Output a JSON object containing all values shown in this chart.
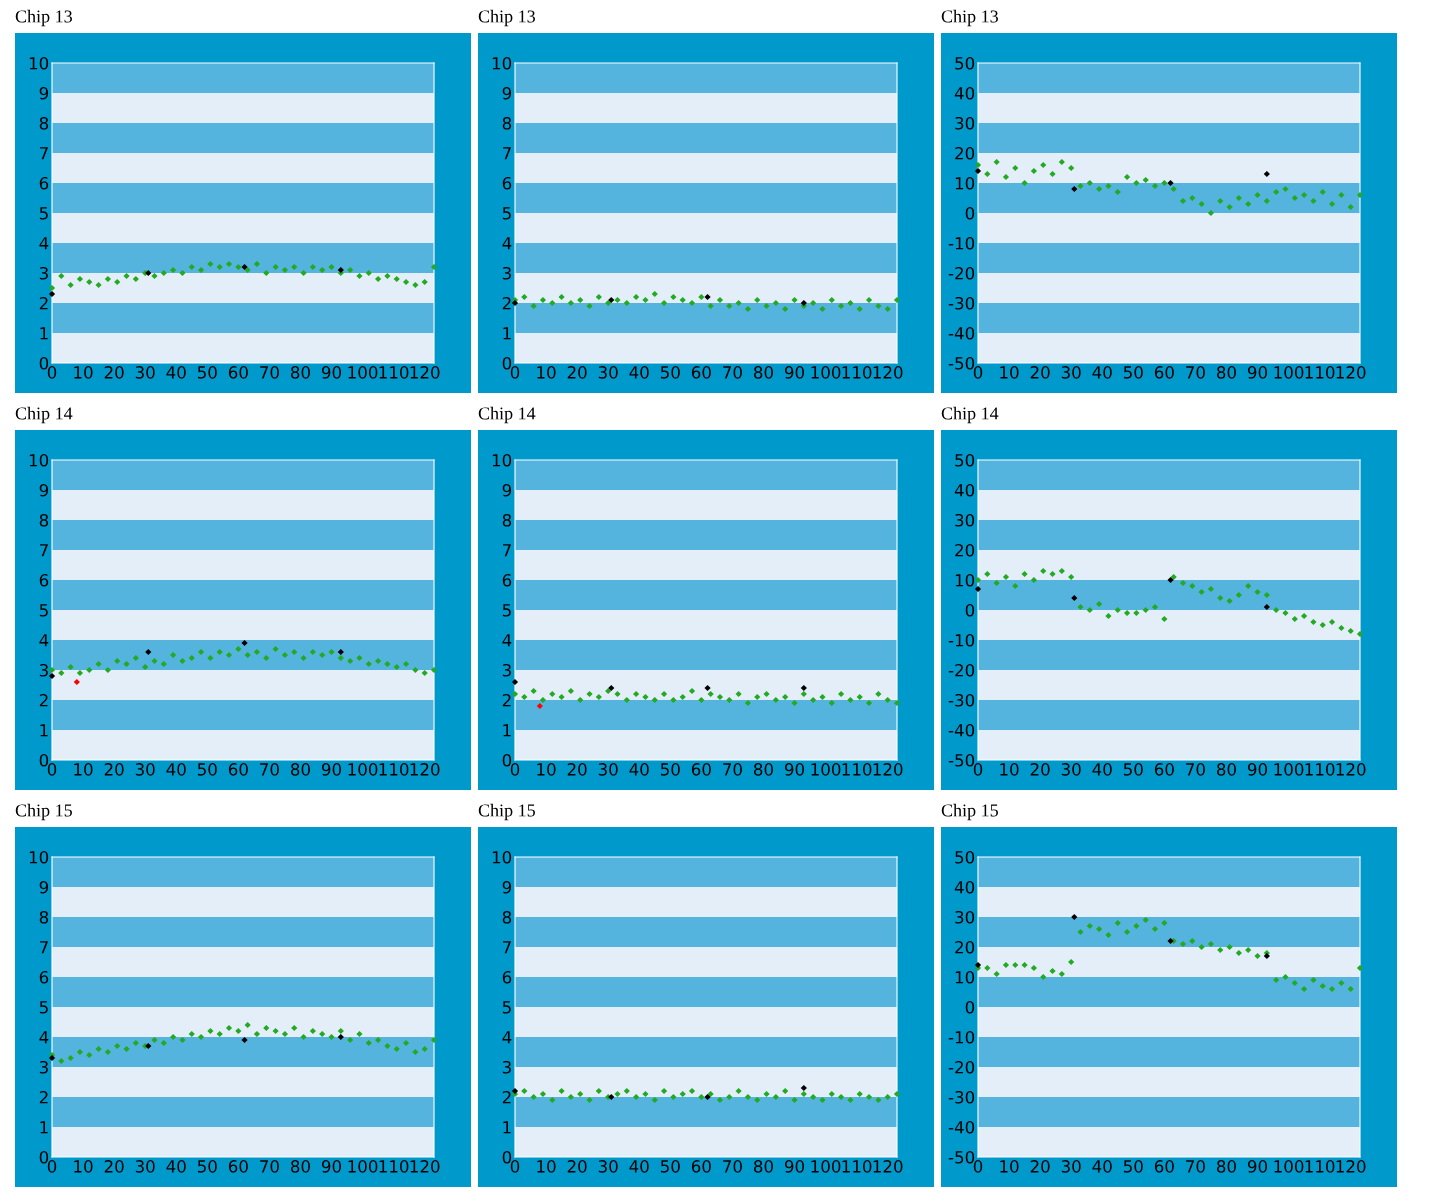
{
  "chart_data": [
    {
      "type": "scatter",
      "title": "Chip 13",
      "x": [
        0,
        3,
        6,
        9,
        12,
        15,
        18,
        21,
        24,
        27,
        30,
        33,
        36,
        39,
        42,
        45,
        48,
        51,
        54,
        57,
        60,
        63,
        66,
        69,
        72,
        75,
        78,
        81,
        84,
        87,
        90,
        93,
        96,
        99,
        102,
        105,
        108,
        111,
        114,
        117,
        120,
        123
      ],
      "xlim": [
        0,
        123
      ],
      "xticks": [
        0,
        10,
        20,
        30,
        40,
        50,
        60,
        70,
        80,
        90,
        100,
        110,
        120
      ],
      "ylim": [
        0,
        10
      ],
      "yticks": [
        0,
        1,
        2,
        3,
        4,
        5,
        6,
        7,
        8,
        9,
        10
      ],
      "marker": "diamond",
      "bands": [
        {
          "axis": "y",
          "from": 9,
          "to": 10,
          "color": "#55b4de"
        },
        {
          "axis": "y",
          "from": 7,
          "to": 8,
          "color": "#55b4de"
        },
        {
          "axis": "y",
          "from": 5,
          "to": 6,
          "color": "#55b4de"
        },
        {
          "axis": "y",
          "from": 3,
          "to": 4,
          "color": "#55b4de"
        },
        {
          "axis": "y",
          "from": 1,
          "to": 2,
          "color": "#55b4de"
        }
      ],
      "series": [
        {
          "color": "#22aa22",
          "values": [
            2.5,
            2.9,
            2.6,
            2.8,
            2.7,
            2.6,
            2.8,
            2.7,
            2.9,
            2.8,
            3.0,
            2.9,
            3.0,
            3.1,
            3.0,
            3.2,
            3.1,
            3.3,
            3.2,
            3.3,
            3.2,
            3.1,
            3.3,
            3.0,
            3.2,
            3.1,
            3.2,
            3.0,
            3.2,
            3.1,
            3.2,
            3.0,
            3.1,
            2.9,
            3.0,
            2.8,
            2.9,
            2.8,
            2.7,
            2.6,
            2.7,
            3.2
          ]
        },
        {
          "color": "#000000",
          "x": [
            0,
            31,
            62,
            93
          ],
          "values": [
            2.3,
            3.0,
            3.2,
            3.1
          ]
        }
      ]
    },
    {
      "type": "scatter",
      "title": "Chip 13",
      "x": [
        0,
        3,
        6,
        9,
        12,
        15,
        18,
        21,
        24,
        27,
        30,
        33,
        36,
        39,
        42,
        45,
        48,
        51,
        54,
        57,
        60,
        63,
        66,
        69,
        72,
        75,
        78,
        81,
        84,
        87,
        90,
        93,
        96,
        99,
        102,
        105,
        108,
        111,
        114,
        117,
        120,
        123
      ],
      "xlim": [
        0,
        123
      ],
      "xticks": [
        0,
        10,
        20,
        30,
        40,
        50,
        60,
        70,
        80,
        90,
        100,
        110,
        120
      ],
      "ylim": [
        0,
        10
      ],
      "yticks": [
        0,
        1,
        2,
        3,
        4,
        5,
        6,
        7,
        8,
        9,
        10
      ],
      "marker": "diamond",
      "bands": [
        {
          "axis": "y",
          "from": 9,
          "to": 10,
          "color": "#55b4de"
        },
        {
          "axis": "y",
          "from": 7,
          "to": 8,
          "color": "#55b4de"
        },
        {
          "axis": "y",
          "from": 5,
          "to": 6,
          "color": "#55b4de"
        },
        {
          "axis": "y",
          "from": 3,
          "to": 4,
          "color": "#55b4de"
        },
        {
          "axis": "y",
          "from": 1,
          "to": 2,
          "color": "#55b4de"
        }
      ],
      "series": [
        {
          "color": "#22aa22",
          "values": [
            2.1,
            2.2,
            1.9,
            2.1,
            2.0,
            2.2,
            2.0,
            2.1,
            1.9,
            2.2,
            2.0,
            2.1,
            2.0,
            2.2,
            2.1,
            2.3,
            2.0,
            2.2,
            2.1,
            2.0,
            2.2,
            1.9,
            2.1,
            1.9,
            2.0,
            1.8,
            2.1,
            1.9,
            2.0,
            1.8,
            2.1,
            1.9,
            2.0,
            1.8,
            2.1,
            1.9,
            2.0,
            1.8,
            2.1,
            1.9,
            1.8,
            2.1
          ]
        },
        {
          "color": "#000000",
          "x": [
            0,
            31,
            62,
            93
          ],
          "values": [
            2.0,
            2.1,
            2.2,
            2.0
          ]
        }
      ]
    },
    {
      "type": "scatter",
      "title": "Chip 13",
      "x": [
        0,
        3,
        6,
        9,
        12,
        15,
        18,
        21,
        24,
        27,
        30,
        33,
        36,
        39,
        42,
        45,
        48,
        51,
        54,
        57,
        60,
        63,
        66,
        69,
        72,
        75,
        78,
        81,
        84,
        87,
        90,
        93,
        96,
        99,
        102,
        105,
        108,
        111,
        114,
        117,
        120,
        123
      ],
      "xlim": [
        0,
        123
      ],
      "xticks": [
        0,
        10,
        20,
        30,
        40,
        50,
        60,
        70,
        80,
        90,
        100,
        110,
        120
      ],
      "ylim": [
        -50,
        50
      ],
      "yticks": [
        -50,
        -40,
        -30,
        -20,
        -10,
        0,
        10,
        20,
        30,
        40,
        50
      ],
      "marker": "diamond",
      "bands": [
        {
          "axis": "y",
          "from": 40,
          "to": 50,
          "color": "#55b4de"
        },
        {
          "axis": "y",
          "from": 20,
          "to": 30,
          "color": "#55b4de"
        },
        {
          "axis": "y",
          "from": 0,
          "to": 10,
          "color": "#55b4de"
        },
        {
          "axis": "y",
          "from": -20,
          "to": -10,
          "color": "#55b4de"
        },
        {
          "axis": "y",
          "from": -40,
          "to": -30,
          "color": "#55b4de"
        }
      ],
      "series": [
        {
          "color": "#22aa22",
          "values": [
            16,
            13,
            17,
            12,
            15,
            10,
            14,
            16,
            13,
            17,
            15,
            9,
            10,
            8,
            9,
            7,
            12,
            10,
            11,
            9,
            10,
            8,
            4,
            5,
            3,
            0,
            4,
            2,
            5,
            3,
            6,
            4,
            7,
            8,
            5,
            6,
            4,
            7,
            3,
            6,
            2,
            6
          ]
        },
        {
          "color": "#000000",
          "x": [
            0,
            31,
            62,
            93
          ],
          "values": [
            14,
            8,
            10,
            13
          ]
        }
      ]
    },
    {
      "type": "scatter",
      "title": "Chip 14",
      "x": [
        0,
        3,
        6,
        9,
        12,
        15,
        18,
        21,
        24,
        27,
        30,
        33,
        36,
        39,
        42,
        45,
        48,
        51,
        54,
        57,
        60,
        63,
        66,
        69,
        72,
        75,
        78,
        81,
        84,
        87,
        90,
        93,
        96,
        99,
        102,
        105,
        108,
        111,
        114,
        117,
        120,
        123
      ],
      "xlim": [
        0,
        123
      ],
      "xticks": [
        0,
        10,
        20,
        30,
        40,
        50,
        60,
        70,
        80,
        90,
        100,
        110,
        120
      ],
      "ylim": [
        0,
        10
      ],
      "yticks": [
        0,
        1,
        2,
        3,
        4,
        5,
        6,
        7,
        8,
        9,
        10
      ],
      "marker": "diamond",
      "bands": [
        {
          "axis": "y",
          "from": 9,
          "to": 10,
          "color": "#55b4de"
        },
        {
          "axis": "y",
          "from": 7,
          "to": 8,
          "color": "#55b4de"
        },
        {
          "axis": "y",
          "from": 5,
          "to": 6,
          "color": "#55b4de"
        },
        {
          "axis": "y",
          "from": 3,
          "to": 4,
          "color": "#55b4de"
        },
        {
          "axis": "y",
          "from": 1,
          "to": 2,
          "color": "#55b4de"
        }
      ],
      "series": [
        {
          "color": "#22aa22",
          "values": [
            3.0,
            2.9,
            3.1,
            2.9,
            3.0,
            3.2,
            3.0,
            3.3,
            3.2,
            3.4,
            3.1,
            3.3,
            3.2,
            3.5,
            3.3,
            3.4,
            3.6,
            3.4,
            3.6,
            3.5,
            3.7,
            3.5,
            3.6,
            3.4,
            3.7,
            3.5,
            3.6,
            3.4,
            3.6,
            3.5,
            3.6,
            3.4,
            3.3,
            3.4,
            3.2,
            3.3,
            3.2,
            3.1,
            3.2,
            3.0,
            2.9,
            3.0
          ]
        },
        {
          "color": "#000000",
          "x": [
            0,
            31,
            62,
            93
          ],
          "values": [
            2.8,
            3.6,
            3.9,
            3.6
          ]
        },
        {
          "color": "#ff0000",
          "x": [
            8
          ],
          "values": [
            2.6
          ]
        }
      ]
    },
    {
      "type": "scatter",
      "title": "Chip 14",
      "x": [
        0,
        3,
        6,
        9,
        12,
        15,
        18,
        21,
        24,
        27,
        30,
        33,
        36,
        39,
        42,
        45,
        48,
        51,
        54,
        57,
        60,
        63,
        66,
        69,
        72,
        75,
        78,
        81,
        84,
        87,
        90,
        93,
        96,
        99,
        102,
        105,
        108,
        111,
        114,
        117,
        120,
        123
      ],
      "xlim": [
        0,
        123
      ],
      "xticks": [
        0,
        10,
        20,
        30,
        40,
        50,
        60,
        70,
        80,
        90,
        100,
        110,
        120
      ],
      "ylim": [
        0,
        10
      ],
      "yticks": [
        0,
        1,
        2,
        3,
        4,
        5,
        6,
        7,
        8,
        9,
        10
      ],
      "marker": "diamond",
      "bands": [
        {
          "axis": "y",
          "from": 9,
          "to": 10,
          "color": "#55b4de"
        },
        {
          "axis": "y",
          "from": 7,
          "to": 8,
          "color": "#55b4de"
        },
        {
          "axis": "y",
          "from": 5,
          "to": 6,
          "color": "#55b4de"
        },
        {
          "axis": "y",
          "from": 3,
          "to": 4,
          "color": "#55b4de"
        },
        {
          "axis": "y",
          "from": 1,
          "to": 2,
          "color": "#55b4de"
        }
      ],
      "series": [
        {
          "color": "#22aa22",
          "values": [
            2.2,
            2.1,
            2.3,
            2.0,
            2.2,
            2.1,
            2.3,
            2.0,
            2.2,
            2.1,
            2.3,
            2.2,
            2.0,
            2.2,
            2.1,
            2.0,
            2.2,
            2.0,
            2.1,
            2.3,
            2.0,
            2.2,
            2.1,
            2.0,
            2.2,
            1.9,
            2.1,
            2.2,
            2.0,
            2.1,
            1.9,
            2.2,
            2.0,
            2.1,
            1.9,
            2.2,
            2.0,
            2.1,
            1.9,
            2.2,
            2.0,
            1.9
          ]
        },
        {
          "color": "#000000",
          "x": [
            0,
            31,
            62,
            93
          ],
          "values": [
            2.6,
            2.4,
            2.4,
            2.4
          ]
        },
        {
          "color": "#ff0000",
          "x": [
            8
          ],
          "values": [
            1.8
          ]
        }
      ]
    },
    {
      "type": "scatter",
      "title": "Chip 14",
      "x": [
        0,
        3,
        6,
        9,
        12,
        15,
        18,
        21,
        24,
        27,
        30,
        33,
        36,
        39,
        42,
        45,
        48,
        51,
        54,
        57,
        60,
        63,
        66,
        69,
        72,
        75,
        78,
        81,
        84,
        87,
        90,
        93,
        96,
        99,
        102,
        105,
        108,
        111,
        114,
        117,
        120,
        123
      ],
      "xlim": [
        0,
        123
      ],
      "xticks": [
        0,
        10,
        20,
        30,
        40,
        50,
        60,
        70,
        80,
        90,
        100,
        110,
        120
      ],
      "ylim": [
        -50,
        50
      ],
      "yticks": [
        -50,
        -40,
        -30,
        -20,
        -10,
        0,
        10,
        20,
        30,
        40,
        50
      ],
      "marker": "diamond",
      "bands": [
        {
          "axis": "y",
          "from": 40,
          "to": 50,
          "color": "#55b4de"
        },
        {
          "axis": "y",
          "from": 20,
          "to": 30,
          "color": "#55b4de"
        },
        {
          "axis": "y",
          "from": 0,
          "to": 10,
          "color": "#55b4de"
        },
        {
          "axis": "y",
          "from": -20,
          "to": -10,
          "color": "#55b4de"
        },
        {
          "axis": "y",
          "from": -40,
          "to": -30,
          "color": "#55b4de"
        }
      ],
      "series": [
        {
          "color": "#22aa22",
          "values": [
            10,
            12,
            9,
            11,
            8,
            12,
            10,
            13,
            12,
            13,
            11,
            1,
            0,
            2,
            -2,
            0,
            -1,
            -1,
            0,
            1,
            -3,
            11,
            9,
            8,
            6,
            7,
            4,
            3,
            5,
            8,
            6,
            5,
            0,
            -1,
            -3,
            -2,
            -4,
            -5,
            -4,
            -6,
            -7,
            -8
          ]
        },
        {
          "color": "#000000",
          "x": [
            0,
            31,
            62,
            93
          ],
          "values": [
            7,
            4,
            10,
            1
          ]
        }
      ]
    },
    {
      "type": "scatter",
      "title": "Chip 15",
      "x": [
        0,
        3,
        6,
        9,
        12,
        15,
        18,
        21,
        24,
        27,
        30,
        33,
        36,
        39,
        42,
        45,
        48,
        51,
        54,
        57,
        60,
        63,
        66,
        69,
        72,
        75,
        78,
        81,
        84,
        87,
        90,
        93,
        96,
        99,
        102,
        105,
        108,
        111,
        114,
        117,
        120,
        123
      ],
      "xlim": [
        0,
        123
      ],
      "xticks": [
        0,
        10,
        20,
        30,
        40,
        50,
        60,
        70,
        80,
        90,
        100,
        110,
        120
      ],
      "ylim": [
        0,
        10
      ],
      "yticks": [
        0,
        1,
        2,
        3,
        4,
        5,
        6,
        7,
        8,
        9,
        10
      ],
      "marker": "diamond",
      "bands": [
        {
          "axis": "y",
          "from": 9,
          "to": 10,
          "color": "#55b4de"
        },
        {
          "axis": "y",
          "from": 7,
          "to": 8,
          "color": "#55b4de"
        },
        {
          "axis": "y",
          "from": 5,
          "to": 6,
          "color": "#55b4de"
        },
        {
          "axis": "y",
          "from": 3,
          "to": 4,
          "color": "#55b4de"
        },
        {
          "axis": "y",
          "from": 1,
          "to": 2,
          "color": "#55b4de"
        }
      ],
      "series": [
        {
          "color": "#22aa22",
          "values": [
            3.4,
            3.2,
            3.3,
            3.5,
            3.4,
            3.6,
            3.5,
            3.7,
            3.6,
            3.8,
            3.7,
            3.9,
            3.8,
            4.0,
            3.9,
            4.1,
            4.0,
            4.2,
            4.1,
            4.3,
            4.2,
            4.4,
            4.1,
            4.3,
            4.2,
            4.1,
            4.3,
            4.0,
            4.2,
            4.1,
            4.0,
            4.2,
            3.9,
            4.1,
            3.8,
            3.9,
            3.7,
            3.6,
            3.8,
            3.5,
            3.6,
            3.9
          ]
        },
        {
          "color": "#000000",
          "x": [
            0,
            31,
            62,
            93
          ],
          "values": [
            3.3,
            3.7,
            3.9,
            4.0
          ]
        }
      ]
    },
    {
      "type": "scatter",
      "title": "Chip 15",
      "x": [
        0,
        3,
        6,
        9,
        12,
        15,
        18,
        21,
        24,
        27,
        30,
        33,
        36,
        39,
        42,
        45,
        48,
        51,
        54,
        57,
        60,
        63,
        66,
        69,
        72,
        75,
        78,
        81,
        84,
        87,
        90,
        93,
        96,
        99,
        102,
        105,
        108,
        111,
        114,
        117,
        120,
        123
      ],
      "xlim": [
        0,
        123
      ],
      "xticks": [
        0,
        10,
        20,
        30,
        40,
        50,
        60,
        70,
        80,
        90,
        100,
        110,
        120
      ],
      "ylim": [
        0,
        10
      ],
      "yticks": [
        0,
        1,
        2,
        3,
        4,
        5,
        6,
        7,
        8,
        9,
        10
      ],
      "marker": "diamond",
      "bands": [
        {
          "axis": "y",
          "from": 9,
          "to": 10,
          "color": "#55b4de"
        },
        {
          "axis": "y",
          "from": 7,
          "to": 8,
          "color": "#55b4de"
        },
        {
          "axis": "y",
          "from": 5,
          "to": 6,
          "color": "#55b4de"
        },
        {
          "axis": "y",
          "from": 3,
          "to": 4,
          "color": "#55b4de"
        },
        {
          "axis": "y",
          "from": 1,
          "to": 2,
          "color": "#55b4de"
        }
      ],
      "series": [
        {
          "color": "#22aa22",
          "values": [
            2.1,
            2.2,
            2.0,
            2.1,
            1.9,
            2.2,
            2.0,
            2.1,
            1.9,
            2.2,
            2.0,
            2.1,
            2.2,
            2.0,
            2.1,
            1.9,
            2.2,
            2.0,
            2.1,
            2.2,
            2.0,
            2.1,
            1.9,
            2.0,
            2.2,
            2.0,
            1.9,
            2.1,
            2.0,
            2.2,
            1.9,
            2.1,
            2.0,
            1.9,
            2.1,
            2.0,
            1.9,
            2.1,
            2.0,
            1.9,
            2.0,
            2.1
          ]
        },
        {
          "color": "#000000",
          "x": [
            0,
            31,
            62,
            93
          ],
          "values": [
            2.2,
            2.0,
            2.0,
            2.3
          ]
        }
      ]
    },
    {
      "type": "scatter",
      "title": "Chip 15",
      "x": [
        0,
        3,
        6,
        9,
        12,
        15,
        18,
        21,
        24,
        27,
        30,
        33,
        36,
        39,
        42,
        45,
        48,
        51,
        54,
        57,
        60,
        63,
        66,
        69,
        72,
        75,
        78,
        81,
        84,
        87,
        90,
        93,
        96,
        99,
        102,
        105,
        108,
        111,
        114,
        117,
        120,
        123
      ],
      "xlim": [
        0,
        123
      ],
      "xticks": [
        0,
        10,
        20,
        30,
        40,
        50,
        60,
        70,
        80,
        90,
        100,
        110,
        120
      ],
      "ylim": [
        -50,
        50
      ],
      "yticks": [
        -50,
        -40,
        -30,
        -20,
        -10,
        0,
        10,
        20,
        30,
        40,
        50
      ],
      "marker": "diamond",
      "bands": [
        {
          "axis": "y",
          "from": 40,
          "to": 50,
          "color": "#55b4de"
        },
        {
          "axis": "y",
          "from": 20,
          "to": 30,
          "color": "#55b4de"
        },
        {
          "axis": "y",
          "from": 0,
          "to": 10,
          "color": "#55b4de"
        },
        {
          "axis": "y",
          "from": -20,
          "to": -10,
          "color": "#55b4de"
        },
        {
          "axis": "y",
          "from": -40,
          "to": -30,
          "color": "#55b4de"
        }
      ],
      "series": [
        {
          "color": "#22aa22",
          "values": [
            13,
            13,
            11,
            14,
            14,
            14,
            13,
            10,
            12,
            11,
            15,
            25,
            27,
            26,
            24,
            28,
            25,
            27,
            29,
            26,
            28,
            22,
            21,
            22,
            20,
            21,
            19,
            20,
            18,
            19,
            17,
            18,
            9,
            10,
            8,
            6,
            9,
            7,
            6,
            8,
            6,
            13
          ]
        },
        {
          "color": "#000000",
          "x": [
            0,
            31,
            62,
            93
          ],
          "values": [
            14,
            30,
            22,
            17
          ]
        }
      ]
    }
  ]
}
